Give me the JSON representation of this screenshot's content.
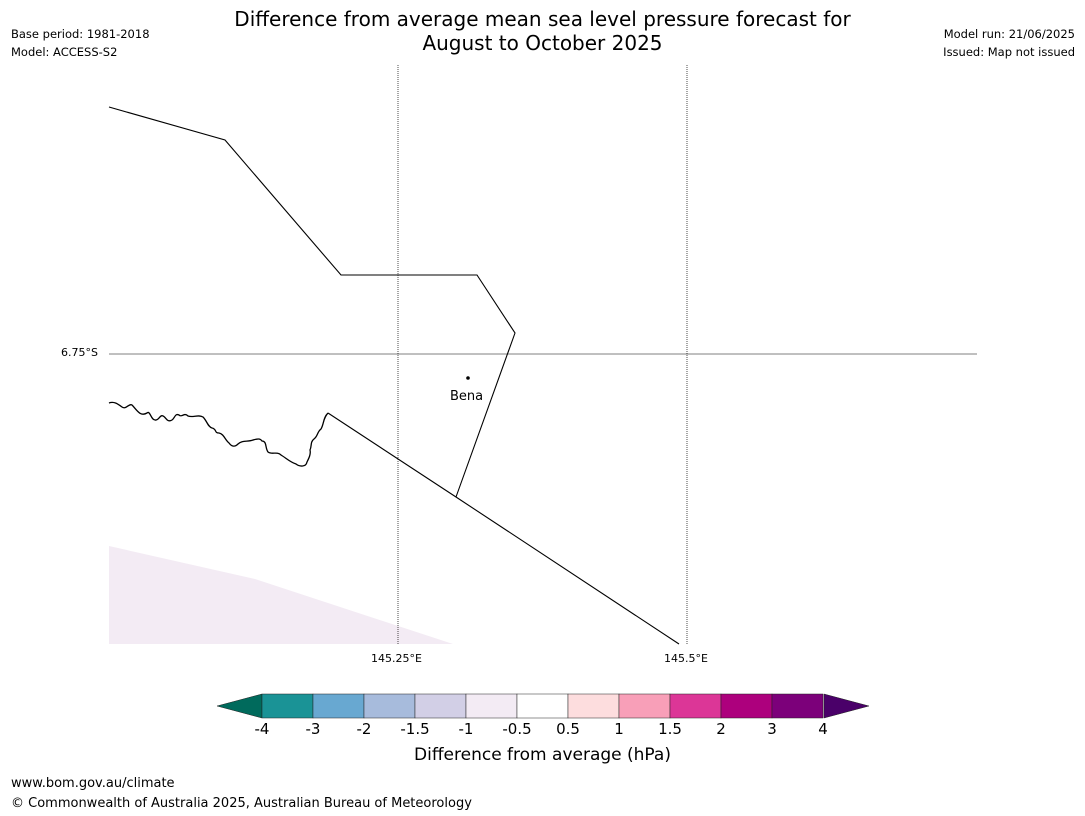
{
  "title_line1": "Difference from average mean sea level pressure forecast for",
  "title_line2": "August to October 2025",
  "meta_left": [
    "Base period: 1981-2018",
    "Model: ACCESS-S2"
  ],
  "meta_right": [
    "Model run: 21/06/2025",
    "Issued: Map not issued"
  ],
  "latitude_labels": [
    "6.75°S"
  ],
  "longitude_labels": [
    "145.25°E",
    "145.5°E"
  ],
  "places": [
    {
      "name": "Bena"
    }
  ],
  "colorbar": {
    "title": "Difference from average (hPa)",
    "ticks": [
      "-4",
      "-3",
      "-2",
      "-1.5",
      "-1",
      "-0.5",
      "0.5",
      "1",
      "1.5",
      "2",
      "3",
      "4"
    ],
    "colors": [
      "#1a9396",
      "#68a8d1",
      "#a7bbdc",
      "#d2cfe6",
      "#f3ebf4",
      "#ffffff",
      "#fdddde",
      "#f89fb8",
      "#dc3697",
      "#ad007d",
      "#7c007a"
    ],
    "under_color": "#006a5c",
    "over_color": "#4a0069"
  },
  "shaded_region_color": "#f3ebf4",
  "footer": [
    "www.bom.gov.au/climate",
    "© Commonwealth of Australia 2025, Australian Bureau of Meteorology"
  ]
}
